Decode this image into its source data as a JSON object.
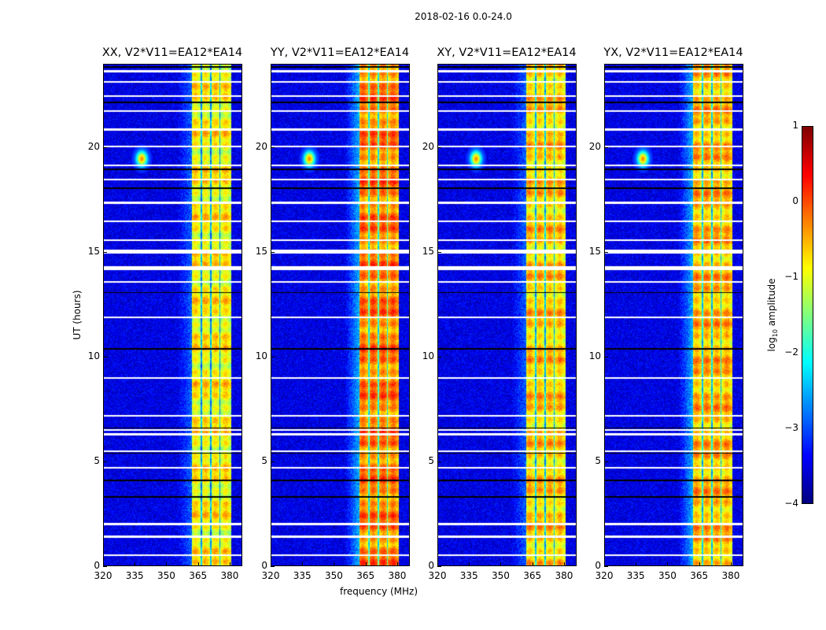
{
  "chart_data": {
    "type": "heatmap",
    "title": "2018-02-16 0.0-24.0",
    "xlabel": "frequency (MHz)",
    "ylabel": "UT (hours)",
    "xlim": [
      320,
      386
    ],
    "ylim": [
      0,
      24
    ],
    "xticks": [
      320,
      335,
      350,
      365,
      380
    ],
    "yticks": [
      0,
      5,
      10,
      15,
      20
    ],
    "colorbar": {
      "label_prefix": "log",
      "label_sub": "10",
      "label_suffix": " amplitude",
      "range": [
        -4,
        1
      ],
      "ticks": [
        "1",
        "0",
        "−1",
        "−2",
        "−3",
        "−4"
      ],
      "tick_values": [
        1,
        0,
        -1,
        -2,
        -3,
        -4
      ],
      "colormap": "jet"
    },
    "panels": [
      {
        "title": "XX, V2*V11=EA12*EA14",
        "band_level": -0.9
      },
      {
        "title": "YY, V2*V11=EA12*EA14",
        "band_level": -0.3
      },
      {
        "title": "XY, V2*V11=EA12*EA14",
        "band_level": -0.7
      },
      {
        "title": "YX, V2*V11=EA12*EA14",
        "band_level": -0.6
      }
    ],
    "features": {
      "background_level": -3.5,
      "rfi_band_mhz": [
        362,
        381
      ],
      "rfi_gaps_mhz": [
        366.5,
        371,
        375.5
      ],
      "spike": {
        "freq_mhz": 338,
        "hour": 19.5,
        "level": -0.3
      },
      "flagged_hours_white": [
        0.5,
        1.4,
        2.0,
        4.7,
        5.5,
        6.3,
        6.5,
        7.2,
        9.0,
        11.9,
        13.6,
        14.2,
        14.3,
        15.0,
        15.1,
        15.6,
        16.5,
        17.4,
        18.5,
        19.2,
        20.1,
        20.9,
        21.8,
        22.5,
        23.2,
        23.7
      ],
      "zero_hours_black": [
        3.3,
        4.1,
        5.4,
        6.6,
        10.4,
        13.1,
        18.1,
        19.0,
        22.2,
        23.9
      ]
    }
  }
}
